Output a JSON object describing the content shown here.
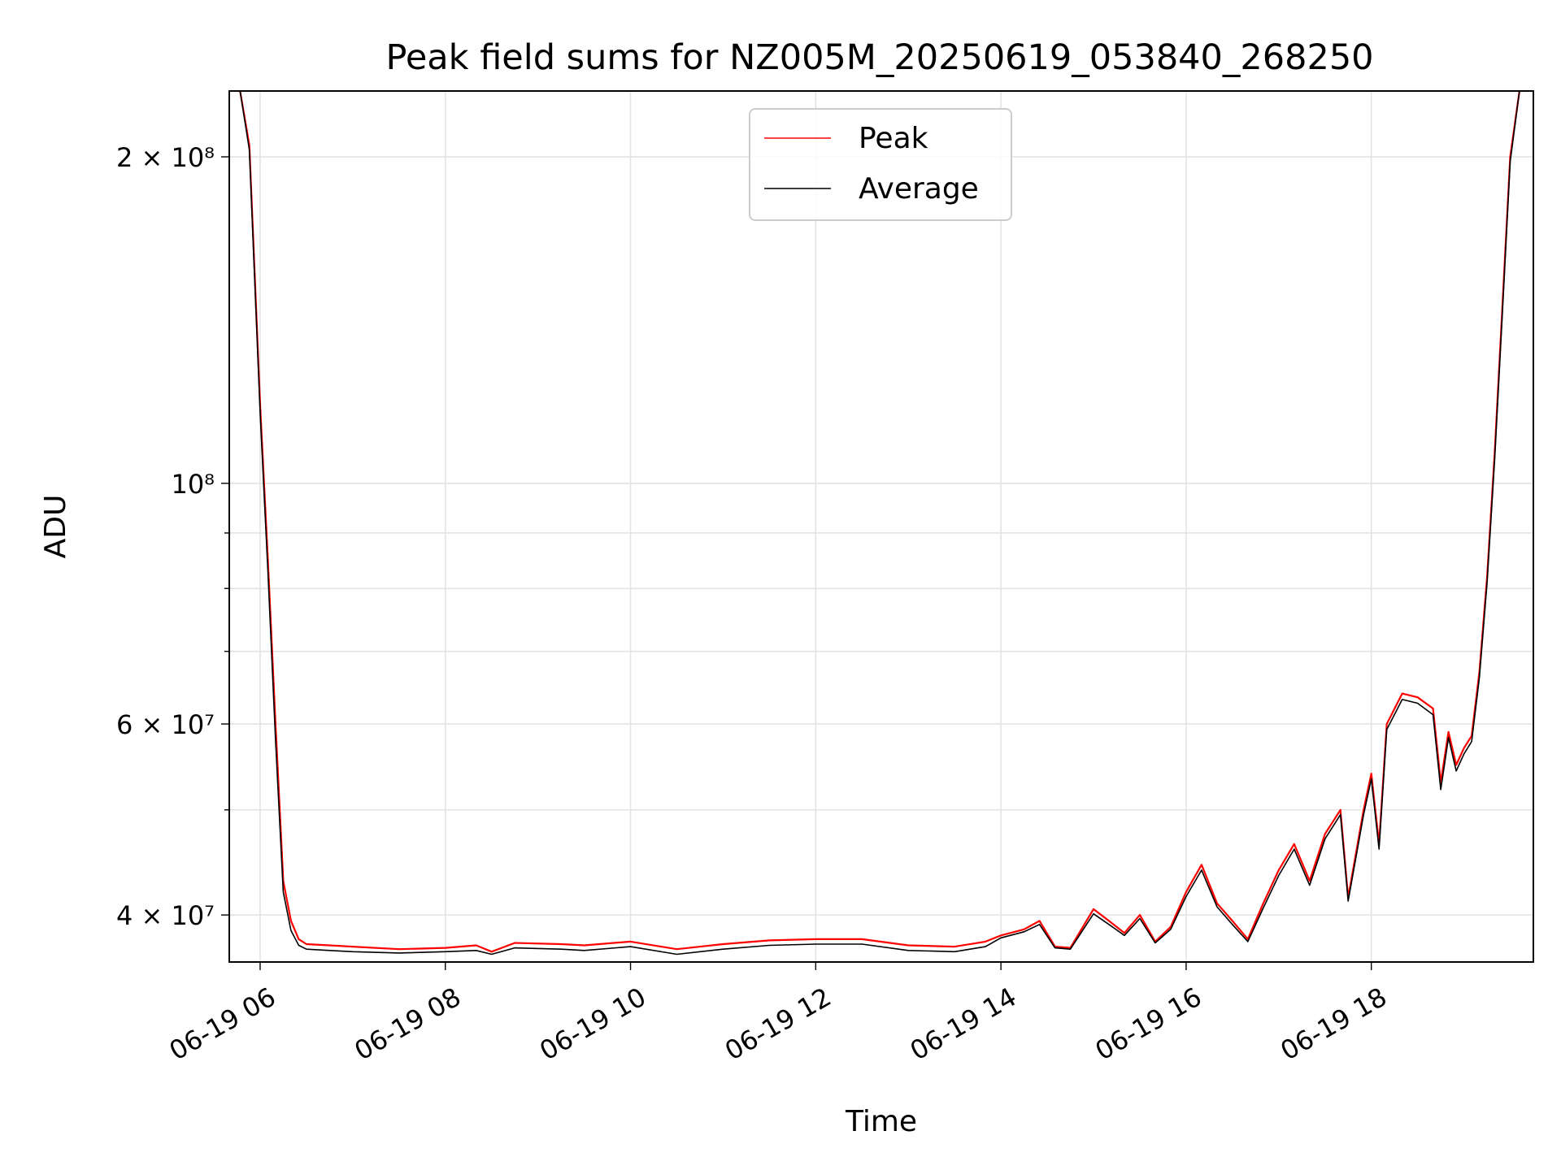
{
  "chart_data": {
    "type": "line",
    "title": "Peak field sums for NZ005M_20250619_053840_268250",
    "xlabel": "Time",
    "ylabel": "ADU",
    "x_ticks": [
      {
        "value": "2025-06-19 06:00",
        "label": "06-19 06"
      },
      {
        "value": "2025-06-19 08:00",
        "label": "06-19 08"
      },
      {
        "value": "2025-06-19 10:00",
        "label": "06-19 10"
      },
      {
        "value": "2025-06-19 12:00",
        "label": "06-19 12"
      },
      {
        "value": "2025-06-19 14:00",
        "label": "06-19 14"
      },
      {
        "value": "2025-06-19 16:00",
        "label": "06-19 16"
      },
      {
        "value": "2025-06-19 18:00",
        "label": "06-19 18"
      }
    ],
    "y_scale": "log",
    "y_ticks": [
      {
        "value": 40000000,
        "label": "4 × 10⁷"
      },
      {
        "value": 60000000,
        "label": "6 × 10⁷"
      },
      {
        "value": 100000000,
        "label": "10⁸"
      },
      {
        "value": 200000000,
        "label": "2 × 10⁸"
      }
    ],
    "y_minor_ticks": [
      50000000,
      70000000,
      80000000,
      90000000
    ],
    "xlim": [
      "2025-06-19 05:40",
      "2025-06-19 19:45"
    ],
    "ylim": [
      36200000,
      230000000
    ],
    "grid": true,
    "legend_position": "top-center",
    "series": [
      {
        "name": "Peak",
        "color": "#ff0000",
        "points": [
          [
            "2025-06-19 05:47",
            230000000
          ],
          [
            "2025-06-19 05:53",
            205000000
          ],
          [
            "2025-06-19 06:00",
            118000000
          ],
          [
            "2025-06-19 06:05",
            85000000
          ],
          [
            "2025-06-19 06:10",
            60000000
          ],
          [
            "2025-06-19 06:15",
            43000000
          ],
          [
            "2025-06-19 06:20",
            39500000
          ],
          [
            "2025-06-19 06:25",
            38000000
          ],
          [
            "2025-06-19 06:30",
            37600000
          ],
          [
            "2025-06-19 06:45",
            37500000
          ],
          [
            "2025-06-19 07:00",
            37400000
          ],
          [
            "2025-06-19 07:30",
            37200000
          ],
          [
            "2025-06-19 08:00",
            37300000
          ],
          [
            "2025-06-19 08:20",
            37500000
          ],
          [
            "2025-06-19 08:30",
            37000000
          ],
          [
            "2025-06-19 08:45",
            37700000
          ],
          [
            "2025-06-19 09:15",
            37600000
          ],
          [
            "2025-06-19 09:30",
            37500000
          ],
          [
            "2025-06-19 10:00",
            37800000
          ],
          [
            "2025-06-19 10:30",
            37200000
          ],
          [
            "2025-06-19 11:00",
            37600000
          ],
          [
            "2025-06-19 11:30",
            37900000
          ],
          [
            "2025-06-19 12:00",
            38000000
          ],
          [
            "2025-06-19 12:30",
            38000000
          ],
          [
            "2025-06-19 13:00",
            37500000
          ],
          [
            "2025-06-19 13:30",
            37400000
          ],
          [
            "2025-06-19 13:50",
            37800000
          ],
          [
            "2025-06-19 14:00",
            38300000
          ],
          [
            "2025-06-19 14:15",
            38800000
          ],
          [
            "2025-06-19 14:25",
            39500000
          ],
          [
            "2025-06-19 14:35",
            37400000
          ],
          [
            "2025-06-19 14:45",
            37300000
          ],
          [
            "2025-06-19 15:00",
            40500000
          ],
          [
            "2025-06-19 15:10",
            39500000
          ],
          [
            "2025-06-19 15:20",
            38500000
          ],
          [
            "2025-06-19 15:30",
            40000000
          ],
          [
            "2025-06-19 15:40",
            37800000
          ],
          [
            "2025-06-19 15:50",
            39000000
          ],
          [
            "2025-06-19 16:00",
            42000000
          ],
          [
            "2025-06-19 16:10",
            44500000
          ],
          [
            "2025-06-19 16:20",
            41000000
          ],
          [
            "2025-06-19 16:30",
            39500000
          ],
          [
            "2025-06-19 16:40",
            38000000
          ],
          [
            "2025-06-19 16:50",
            41000000
          ],
          [
            "2025-06-19 17:00",
            44000000
          ],
          [
            "2025-06-19 17:10",
            46500000
          ],
          [
            "2025-06-19 17:20",
            43000000
          ],
          [
            "2025-06-19 17:30",
            47500000
          ],
          [
            "2025-06-19 17:40",
            50000000
          ],
          [
            "2025-06-19 17:45",
            41500000
          ],
          [
            "2025-06-19 17:55",
            50000000
          ],
          [
            "2025-06-19 18:00",
            54000000
          ],
          [
            "2025-06-19 18:05",
            46500000
          ],
          [
            "2025-06-19 18:10",
            60000000
          ],
          [
            "2025-06-19 18:20",
            64000000
          ],
          [
            "2025-06-19 18:30",
            63500000
          ],
          [
            "2025-06-19 18:40",
            62000000
          ],
          [
            "2025-06-19 18:45",
            53000000
          ],
          [
            "2025-06-19 18:50",
            59000000
          ],
          [
            "2025-06-19 18:55",
            55000000
          ],
          [
            "2025-06-19 19:00",
            57000000
          ],
          [
            "2025-06-19 19:05",
            58500000
          ],
          [
            "2025-06-19 19:10",
            67000000
          ],
          [
            "2025-06-19 19:15",
            82000000
          ],
          [
            "2025-06-19 19:20",
            107000000
          ],
          [
            "2025-06-19 19:25",
            146000000
          ],
          [
            "2025-06-19 19:30",
            200000000
          ],
          [
            "2025-06-19 19:36",
            230000000
          ]
        ]
      },
      {
        "name": "Average",
        "color": "#000000",
        "points": [
          [
            "2025-06-19 05:47",
            230000000
          ],
          [
            "2025-06-19 05:53",
            203000000
          ],
          [
            "2025-06-19 06:00",
            116000000
          ],
          [
            "2025-06-19 06:05",
            83000000
          ],
          [
            "2025-06-19 06:10",
            58000000
          ],
          [
            "2025-06-19 06:15",
            42000000
          ],
          [
            "2025-06-19 06:20",
            38700000
          ],
          [
            "2025-06-19 06:25",
            37500000
          ],
          [
            "2025-06-19 06:30",
            37200000
          ],
          [
            "2025-06-19 06:45",
            37100000
          ],
          [
            "2025-06-19 07:00",
            37000000
          ],
          [
            "2025-06-19 07:30",
            36900000
          ],
          [
            "2025-06-19 08:00",
            37000000
          ],
          [
            "2025-06-19 08:20",
            37100000
          ],
          [
            "2025-06-19 08:30",
            36800000
          ],
          [
            "2025-06-19 08:45",
            37300000
          ],
          [
            "2025-06-19 09:15",
            37200000
          ],
          [
            "2025-06-19 09:30",
            37100000
          ],
          [
            "2025-06-19 10:00",
            37400000
          ],
          [
            "2025-06-19 10:30",
            36800000
          ],
          [
            "2025-06-19 11:00",
            37200000
          ],
          [
            "2025-06-19 11:30",
            37500000
          ],
          [
            "2025-06-19 12:00",
            37600000
          ],
          [
            "2025-06-19 12:30",
            37600000
          ],
          [
            "2025-06-19 13:00",
            37100000
          ],
          [
            "2025-06-19 13:30",
            37000000
          ],
          [
            "2025-06-19 13:50",
            37400000
          ],
          [
            "2025-06-19 14:00",
            38100000
          ],
          [
            "2025-06-19 14:15",
            38600000
          ],
          [
            "2025-06-19 14:25",
            39200000
          ],
          [
            "2025-06-19 14:35",
            37300000
          ],
          [
            "2025-06-19 14:45",
            37200000
          ],
          [
            "2025-06-19 15:00",
            40100000
          ],
          [
            "2025-06-19 15:10",
            39200000
          ],
          [
            "2025-06-19 15:20",
            38300000
          ],
          [
            "2025-06-19 15:30",
            39700000
          ],
          [
            "2025-06-19 15:40",
            37700000
          ],
          [
            "2025-06-19 15:50",
            38800000
          ],
          [
            "2025-06-19 16:00",
            41600000
          ],
          [
            "2025-06-19 16:10",
            44000000
          ],
          [
            "2025-06-19 16:20",
            40700000
          ],
          [
            "2025-06-19 16:30",
            39200000
          ],
          [
            "2025-06-19 16:40",
            37800000
          ],
          [
            "2025-06-19 16:50",
            40600000
          ],
          [
            "2025-06-19 17:00",
            43500000
          ],
          [
            "2025-06-19 17:10",
            46000000
          ],
          [
            "2025-06-19 17:20",
            42600000
          ],
          [
            "2025-06-19 17:30",
            47000000
          ],
          [
            "2025-06-19 17:40",
            49500000
          ],
          [
            "2025-06-19 17:45",
            41200000
          ],
          [
            "2025-06-19 17:55",
            49500000
          ],
          [
            "2025-06-19 18:00",
            53400000
          ],
          [
            "2025-06-19 18:05",
            46000000
          ],
          [
            "2025-06-19 18:10",
            59300000
          ],
          [
            "2025-06-19 18:20",
            63200000
          ],
          [
            "2025-06-19 18:30",
            62700000
          ],
          [
            "2025-06-19 18:40",
            61200000
          ],
          [
            "2025-06-19 18:45",
            52200000
          ],
          [
            "2025-06-19 18:50",
            58300000
          ],
          [
            "2025-06-19 18:55",
            54300000
          ],
          [
            "2025-06-19 19:00",
            56300000
          ],
          [
            "2025-06-19 19:05",
            57800000
          ],
          [
            "2025-06-19 19:10",
            66200000
          ],
          [
            "2025-06-19 19:15",
            81000000
          ],
          [
            "2025-06-19 19:20",
            105500000
          ],
          [
            "2025-06-19 19:25",
            144000000
          ],
          [
            "2025-06-19 19:30",
            198000000
          ],
          [
            "2025-06-19 19:36",
            230000000
          ]
        ]
      }
    ]
  }
}
